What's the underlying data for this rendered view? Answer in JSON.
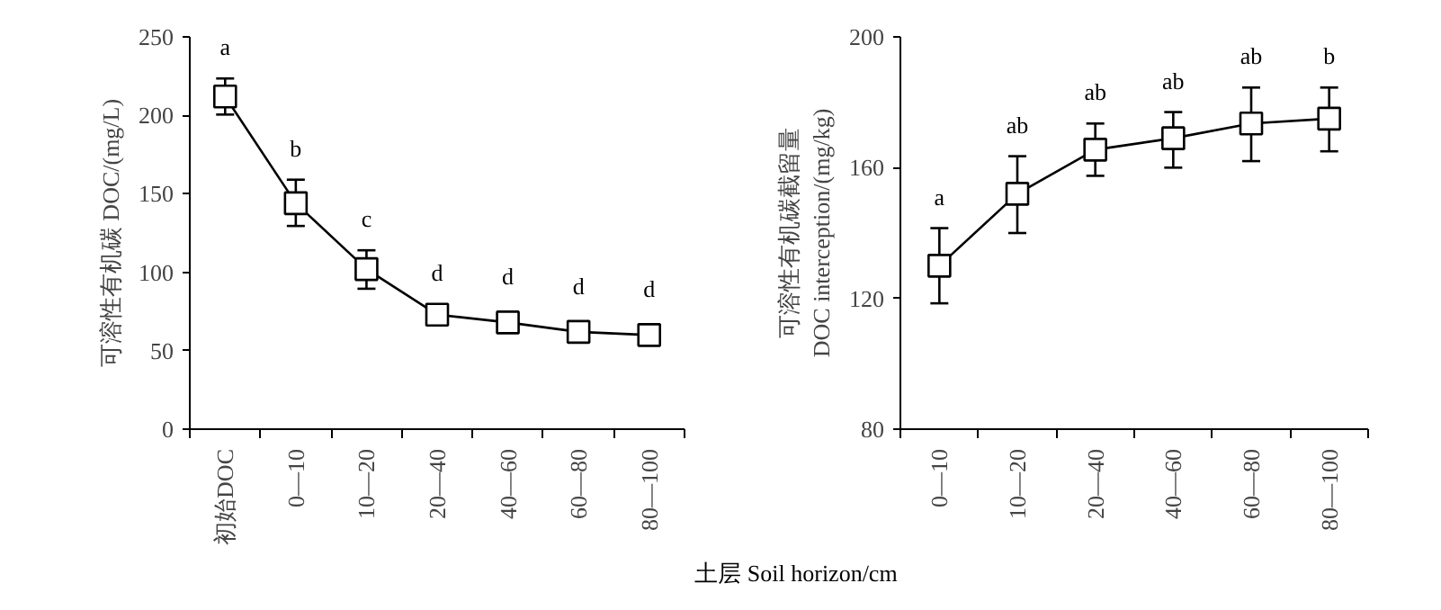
{
  "chart_data": [
    {
      "type": "line",
      "ylabel": "可溶性有机碳 DOC/(mg/L)",
      "xlabel": "土层 Soil horizon/cm",
      "categories": [
        "初始DOC",
        "0—10",
        "10—20",
        "20—40",
        "40—60",
        "60—80",
        "80—100"
      ],
      "series": [
        {
          "color": "#000000",
          "values": [
            212,
            144,
            102,
            73,
            68,
            62,
            60
          ],
          "errors": [
            [
              200.5,
              223.5
            ],
            [
              129.5,
              159
            ],
            [
              89.5,
              114
            ],
            [
              66.5,
              79.5
            ],
            null,
            null,
            null
          ],
          "value_labels": [
            "a",
            "b",
            "c",
            "d",
            "d",
            "d",
            "d"
          ]
        }
      ],
      "ylim": [
        0,
        250
      ],
      "yticks": [
        0,
        50,
        100,
        150,
        200,
        250
      ],
      "marker": "square",
      "line_style": "solid",
      "grid": false
    },
    {
      "type": "line",
      "ylabel": "可溶性有机碳截留量\nDOC interception/(mg/kg)",
      "categories": [
        "0—10",
        "10—20",
        "20—40",
        "40—60",
        "60—80",
        "80—100"
      ],
      "series": [
        {
          "color": "#000000",
          "values": [
            130,
            152,
            165.5,
            169,
            173.5,
            175
          ],
          "errors": [
            [
              118.5,
              141.5
            ],
            [
              140,
              163.5
            ],
            [
              157.5,
              173.5
            ],
            [
              160,
              177
            ],
            [
              162,
              184.5
            ],
            [
              165,
              184.5
            ]
          ],
          "value_labels": [
            "a",
            "ab",
            "ab",
            "ab",
            "ab",
            "b"
          ]
        }
      ],
      "ylim": [
        80,
        200
      ],
      "yticks": [
        80,
        120,
        160,
        200
      ],
      "marker": "square",
      "line_style": "solid",
      "grid": false
    }
  ]
}
